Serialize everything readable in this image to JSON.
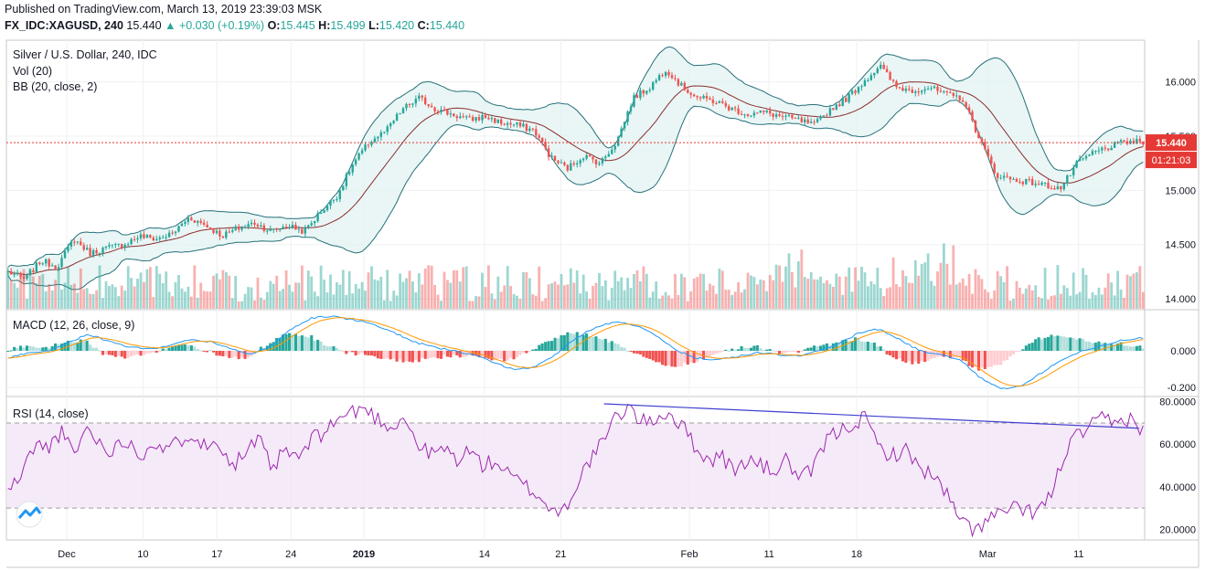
{
  "header": {
    "published": "Published on TradingView.com, March 13, 2019 23:39:03 MSK",
    "symbol": "FX_IDC:XAGUSD, 240",
    "last": "15.440",
    "change": "▲ +0.030 (+0.19%)",
    "o_label": "O:",
    "o_value": "15.445",
    "h_label": "H:",
    "h_value": "15.499",
    "l_label": "L:",
    "l_value": "15.420",
    "c_label": "C:",
    "c_value": "15.440"
  },
  "colors": {
    "up": "#26a69a",
    "down": "#ef5350",
    "bb_fill": "#e0f2f1",
    "bb_band": "#26707a",
    "bb_basis": "#8b2e2e",
    "macd_line": "#2196f3",
    "signal_line": "#ff9800",
    "rsi_line": "#9c27b0",
    "rsi_band": "#f3e5f5",
    "trendline": "#3f3fd0",
    "price_line": "#e53935"
  },
  "chart_data": [
    {
      "type": "candlestick",
      "title": "Silver / U.S. Dollar, 240, IDC",
      "indicators": [
        "Vol (20)",
        "BB (20, close, 2)"
      ],
      "x_tick_labels": [
        "Dec",
        "10",
        "17",
        "24",
        "2019",
        "14",
        "21",
        "Feb",
        "11",
        "18",
        "Mar",
        "11"
      ],
      "y_tick_labels": [
        "16.000",
        "15.500",
        "15.000",
        "14.500",
        "14.000"
      ],
      "ylim": [
        13.95,
        16.35
      ],
      "last_price": "15.440",
      "countdown": "01:21:03",
      "close_path": [
        14.25,
        14.18,
        14.35,
        14.3,
        14.55,
        14.42,
        14.47,
        14.5,
        14.58,
        14.55,
        14.6,
        14.75,
        14.68,
        14.58,
        14.65,
        14.7,
        14.62,
        14.68,
        14.62,
        14.8,
        14.95,
        15.25,
        15.45,
        15.55,
        15.75,
        15.85,
        15.75,
        15.7,
        15.65,
        15.68,
        15.62,
        15.6,
        15.55,
        15.3,
        15.2,
        15.32,
        15.25,
        15.45,
        15.85,
        15.95,
        16.12,
        15.95,
        15.85,
        15.82,
        15.75,
        15.7,
        15.72,
        15.68,
        15.65,
        15.6,
        15.75,
        15.85,
        16.0,
        16.15,
        15.95,
        15.92,
        15.95,
        15.88,
        15.85,
        15.5,
        15.15,
        15.1,
        15.08,
        15.05,
        15.02,
        15.25,
        15.35,
        15.4,
        15.45,
        15.44
      ]
    },
    {
      "type": "macd",
      "title": "MACD (12, 26, close, 9)",
      "y_tick_labels": [
        "0.000",
        "-0.200"
      ],
      "ylim": [
        -0.25,
        0.22
      ],
      "macd_path": [
        -0.04,
        -0.01,
        0.0,
        0.05,
        0.09,
        0.05,
        0.02,
        0.01,
        0.03,
        0.06,
        0.05,
        0.01,
        -0.02,
        0.03,
        0.12,
        0.18,
        0.19,
        0.17,
        0.15,
        0.1,
        0.05,
        0.02,
        0.0,
        -0.02,
        -0.07,
        -0.1,
        -0.09,
        -0.02,
        0.07,
        0.13,
        0.16,
        0.14,
        0.08,
        0.0,
        -0.04,
        -0.05,
        -0.03,
        -0.01,
        -0.02,
        -0.03,
        0.0,
        0.04,
        0.1,
        0.12,
        0.06,
        0.0,
        -0.02,
        -0.05,
        -0.15,
        -0.21,
        -0.19,
        -0.12,
        -0.05,
        0.0,
        0.03,
        0.06,
        0.07
      ]
    },
    {
      "type": "line",
      "title": "RSI (14, close)",
      "y_tick_labels": [
        "80.0000",
        "60.0000",
        "40.0000",
        "20.0000"
      ],
      "ylim": [
        15,
        82
      ],
      "overbought": 70,
      "oversold": 30,
      "rsi_path": [
        38,
        45,
        60,
        58,
        66,
        55,
        68,
        60,
        57,
        63,
        54,
        62,
        56,
        62,
        66,
        58,
        62,
        50,
        56,
        62,
        48,
        57,
        53,
        62,
        66,
        72,
        75,
        77,
        72,
        68,
        73,
        60,
        55,
        58,
        53,
        57,
        50,
        52,
        45,
        41,
        37,
        30,
        28,
        40,
        52,
        60,
        72,
        78,
        70,
        72,
        75,
        69,
        60,
        52,
        55,
        47,
        53,
        50,
        47,
        53,
        43,
        48,
        62,
        66,
        70,
        72,
        58,
        55,
        57,
        50,
        45,
        38,
        25,
        20,
        23,
        27,
        30,
        28,
        29,
        35,
        55,
        64,
        68,
        72,
        69,
        73,
        66
      ]
    }
  ]
}
